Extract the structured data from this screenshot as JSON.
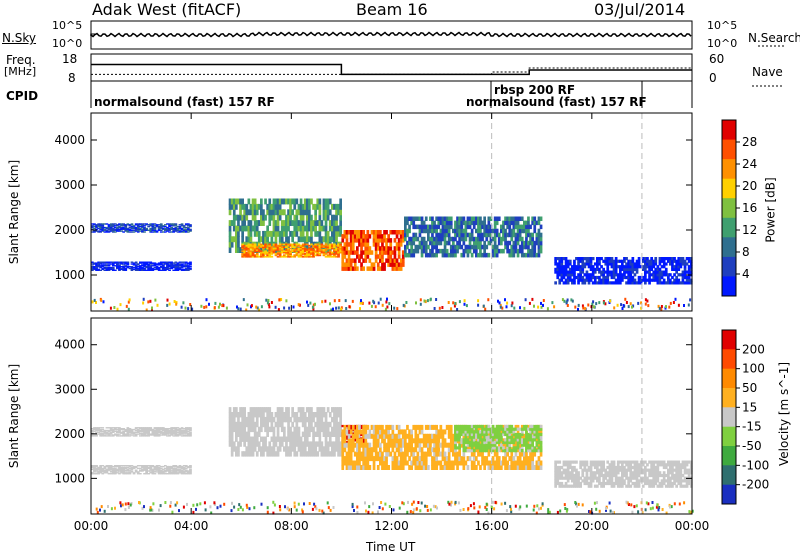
{
  "header": {
    "station": "Adak West (fitACF)",
    "beam": "Beam 16",
    "date": "03/Jul/2014"
  },
  "status_panel": {
    "nsky_label": "N.Sky",
    "nsky_ticks": [
      "10^5",
      "10^0"
    ],
    "nsearch_label": "N.Search",
    "nsearch_ticks": [
      "10^5",
      "10^0"
    ],
    "freq_label": "Freq.",
    "freq_unit": "[MHz]",
    "freq_ticks": [
      "18",
      "8"
    ],
    "nave_label": "Nave",
    "nave_ticks": [
      "60",
      "0"
    ],
    "cpid_label": "CPID",
    "cpid_segments": [
      {
        "label": "normalsound (fast) 157 RF",
        "start_hour": 0,
        "end_hour": 16
      },
      {
        "label": "rbsp 200 RF",
        "start_hour": 16,
        "end_hour": 22
      },
      {
        "label": "normalsound (fast) 157 RF",
        "start_hour": 16,
        "end_hour": 22
      }
    ],
    "freq_series": {
      "hours": [
        0,
        10,
        10,
        17.5,
        17.5,
        24
      ],
      "mhz": [
        15.5,
        15.5,
        11,
        11,
        13,
        13
      ]
    },
    "nave_series": {
      "hours": [
        0,
        16,
        16,
        17.5,
        17.5,
        24
      ],
      "count": [
        14,
        14,
        20,
        20,
        30,
        30
      ]
    }
  },
  "chart_data": [
    {
      "type": "heatmap",
      "name": "power",
      "ylabel": "Slant Range [km]",
      "xlabel": "Time UT",
      "xlim_hours": [
        0,
        24
      ],
      "ylim_km": [
        200,
        4600
      ],
      "yticks": [
        "1000",
        "2000",
        "3000",
        "4000"
      ],
      "colorbar": {
        "label": "Power [dB]",
        "ticks": [
          "28",
          "24",
          "20",
          "16",
          "12",
          "8",
          "4"
        ],
        "colors": [
          "#0018ff",
          "#1f3fbf",
          "#2f6f8f",
          "#3f9f6f",
          "#7fc040",
          "#ffd000",
          "#ff9000",
          "#ff5000",
          "#e00000"
        ]
      },
      "bands": [
        {
          "hours": [
            0,
            4
          ],
          "range_km": [
            1950,
            2150
          ],
          "level": 1
        },
        {
          "hours": [
            0,
            4
          ],
          "range_km": [
            1100,
            1300
          ],
          "level": 0
        },
        {
          "hours": [
            5.5,
            10
          ],
          "range_km": [
            1500,
            2700
          ],
          "level": 3
        },
        {
          "hours": [
            6,
            10
          ],
          "range_km": [
            1400,
            1700
          ],
          "level": 6
        },
        {
          "hours": [
            10,
            12.5
          ],
          "range_km": [
            1100,
            2000
          ],
          "level": 7
        },
        {
          "hours": [
            12.5,
            18
          ],
          "range_km": [
            1400,
            2300
          ],
          "level": 2
        },
        {
          "hours": [
            18.5,
            24
          ],
          "range_km": [
            800,
            1400
          ],
          "level": 0
        }
      ],
      "dashed_markers_hours": [
        16,
        22
      ]
    },
    {
      "type": "heatmap",
      "name": "velocity",
      "ylabel": "Slant Range [km]",
      "xlabel": "Time UT",
      "xlim_hours": [
        0,
        24
      ],
      "ylim_km": [
        200,
        4600
      ],
      "yticks": [
        "1000",
        "2000",
        "3000",
        "4000"
      ],
      "colorbar": {
        "label": "Velocity [m s^-1]",
        "ticks": [
          "200",
          "100",
          "50",
          "15",
          "-15",
          "-50",
          "-100",
          "-200"
        ],
        "colors": [
          "#1a2fc0",
          "#2f6f6f",
          "#3faa3f",
          "#7fd040",
          "#c8c8c8",
          "#ffb020",
          "#ff8a00",
          "#ff4a00",
          "#e00000"
        ]
      },
      "bands": [
        {
          "hours": [
            0,
            4
          ],
          "range_km": [
            1950,
            2150
          ],
          "color": "#c8c8c8"
        },
        {
          "hours": [
            0,
            4
          ],
          "range_km": [
            1100,
            1300
          ],
          "color": "#c8c8c8"
        },
        {
          "hours": [
            5.5,
            10
          ],
          "range_km": [
            1500,
            2600
          ],
          "color": "#c8c8c8"
        },
        {
          "hours": [
            10,
            11
          ],
          "range_km": [
            1800,
            2200
          ],
          "color": "#e00000"
        },
        {
          "hours": [
            10,
            18
          ],
          "range_km": [
            1200,
            2200
          ],
          "color": "#ffb020"
        },
        {
          "hours": [
            14.5,
            18
          ],
          "range_km": [
            1600,
            2200
          ],
          "color": "#7fd040"
        },
        {
          "hours": [
            18.5,
            24
          ],
          "range_km": [
            800,
            1400
          ],
          "color": "#c8c8c8"
        }
      ],
      "dashed_markers_hours": [
        16,
        22
      ]
    }
  ],
  "x_axis": {
    "ticks": [
      "00:00",
      "04:00",
      "08:00",
      "12:00",
      "16:00",
      "20:00",
      "00:00"
    ],
    "label": "Time UT"
  }
}
